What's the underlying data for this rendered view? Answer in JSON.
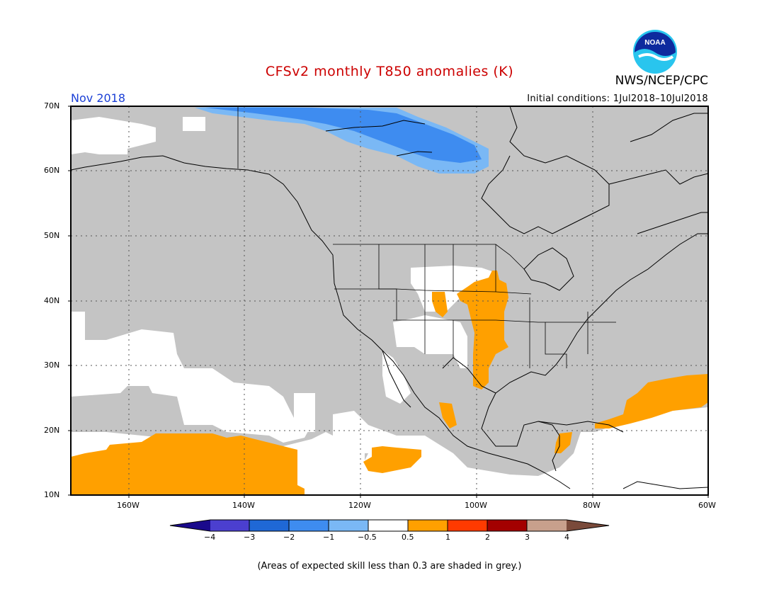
{
  "title": "CFSv2 monthly T850 anomalies (K)",
  "agency": "NWS/NCEP/CPC",
  "month_label": "Nov 2018",
  "initial_conditions": "Initial conditions: 1Jul2018–10Jul2018",
  "footnote": "(Areas of expected skill less than 0.3 are shaded in grey.)",
  "logo_text": "NOAA",
  "map": {
    "lon_range": [
      -172,
      -60
    ],
    "lat_range": [
      10,
      70
    ],
    "lat_ticks": [
      "10N",
      "20N",
      "30N",
      "40N",
      "50N",
      "60N",
      "70N"
    ],
    "lon_ticks": [
      "160W",
      "140W",
      "120W",
      "100W",
      "80W",
      "60W"
    ],
    "grid": "dotted",
    "low_skill_color": "#c4c4c4"
  },
  "colorbar": {
    "labels": [
      "−4",
      "−3",
      "−2",
      "−1",
      "−0.5",
      "0.5",
      "1",
      "2",
      "3",
      "4"
    ],
    "colors": [
      "#1a0a8c",
      "#4b3fcf",
      "#1f68d6",
      "#3e8cf0",
      "#7ab8f5",
      "#ffffff",
      "#ffa000",
      "#ff3a00",
      "#a30000",
      "#c8a08c",
      "#7a4a3a"
    ]
  },
  "colors": {
    "title": "#cc0000",
    "month": "#1a3fd6",
    "grey": "#c4c4c4",
    "orange": "#ffa000",
    "blue_light": "#7ab8f5",
    "blue_mid": "#3e8cf0"
  }
}
